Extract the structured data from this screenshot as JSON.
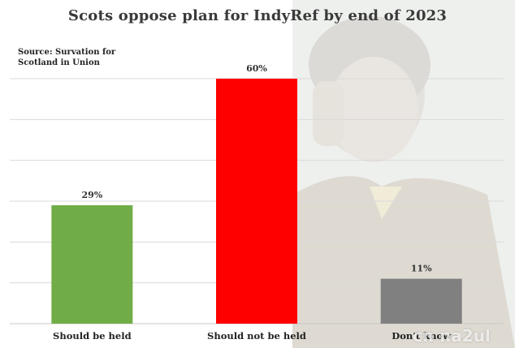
{
  "chart_data": {
    "type": "bar",
    "title": "Scots oppose plan for IndyRef by end of 2023",
    "source": [
      "Source: Survation for",
      "Scotland in Union"
    ],
    "categories": [
      "Should be held",
      "Should not be held",
      "Don't know"
    ],
    "values": [
      29,
      60,
      11
    ],
    "value_labels": [
      "29%",
      "60%",
      "11%"
    ],
    "colors": [
      "#70ad47",
      "#ff0000",
      "#808080"
    ],
    "ylim": [
      0,
      60
    ],
    "grid": true,
    "gridline_values": [
      10,
      20,
      30,
      40,
      50,
      60
    ],
    "xlabel": "",
    "ylabel": ""
  },
  "watermark": "cn na2ul"
}
